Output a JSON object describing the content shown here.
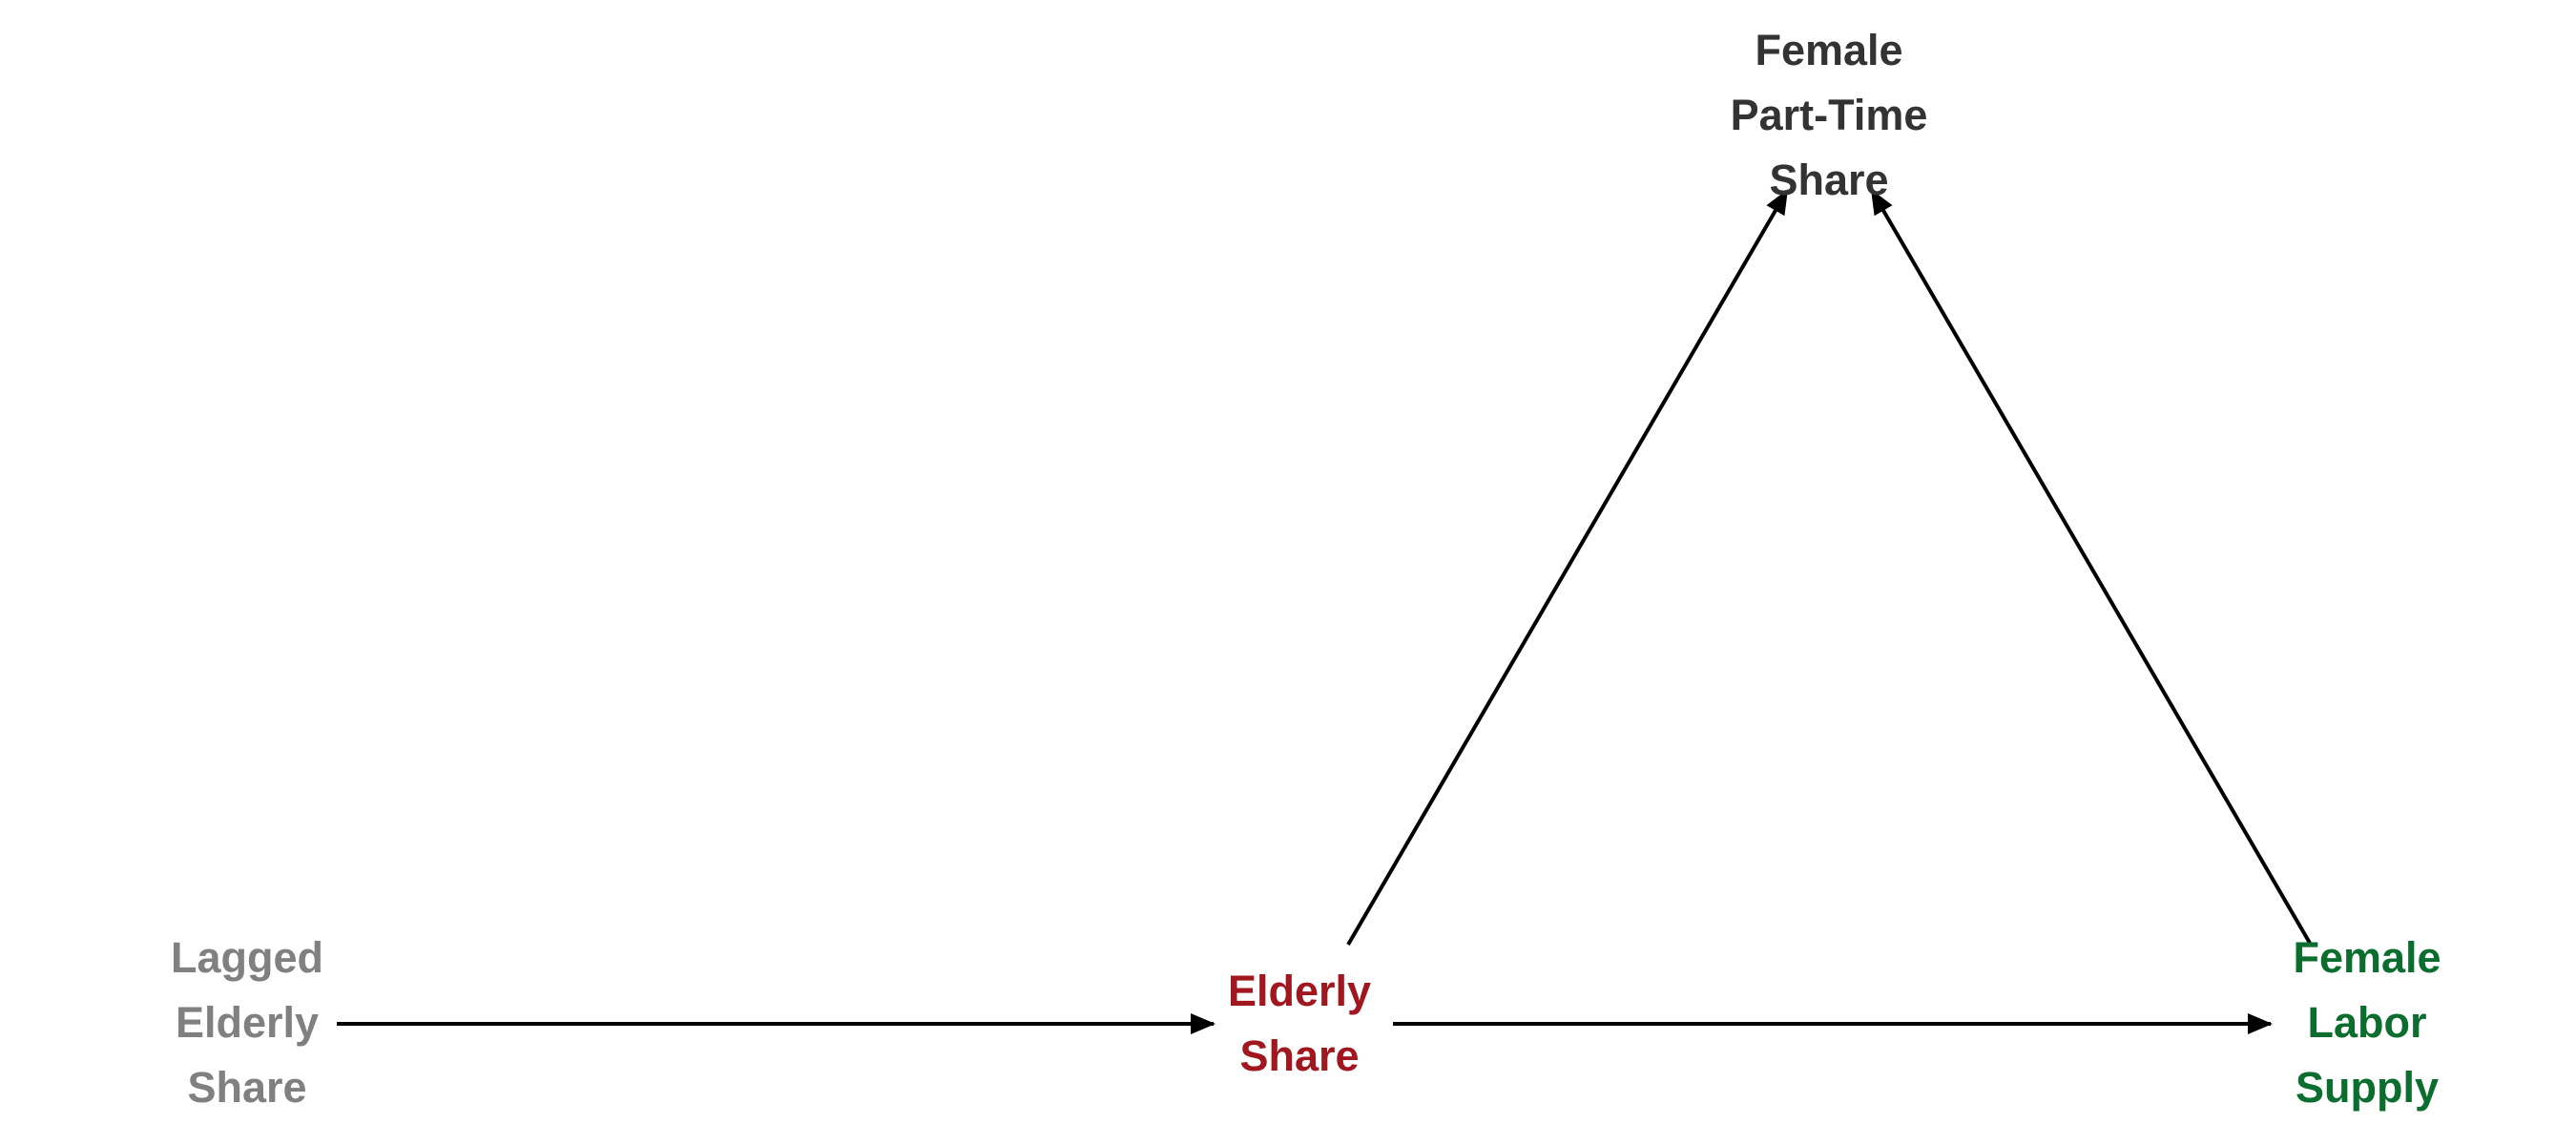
{
  "colors": {
    "background": "#ffffff",
    "arrow": "#000000",
    "lagged": "#808080",
    "elderly": "#a0171f",
    "female_labor": "#0b6e2e",
    "part_time": "#333333"
  },
  "nodes": {
    "lagged": {
      "lines": [
        "Lagged",
        "Elderly",
        "Share"
      ]
    },
    "elderly": {
      "lines": [
        "Elderly",
        "Share"
      ]
    },
    "female_labor": {
      "lines": [
        "Female",
        "Labor",
        "Supply"
      ]
    },
    "part_time": {
      "lines": [
        "Female",
        "Part-Time",
        "Share"
      ]
    }
  },
  "edges": [
    {
      "from": "lagged",
      "to": "elderly"
    },
    {
      "from": "elderly",
      "to": "female_labor"
    },
    {
      "from": "elderly",
      "to": "part_time"
    },
    {
      "from": "female_labor",
      "to": "part_time"
    }
  ]
}
